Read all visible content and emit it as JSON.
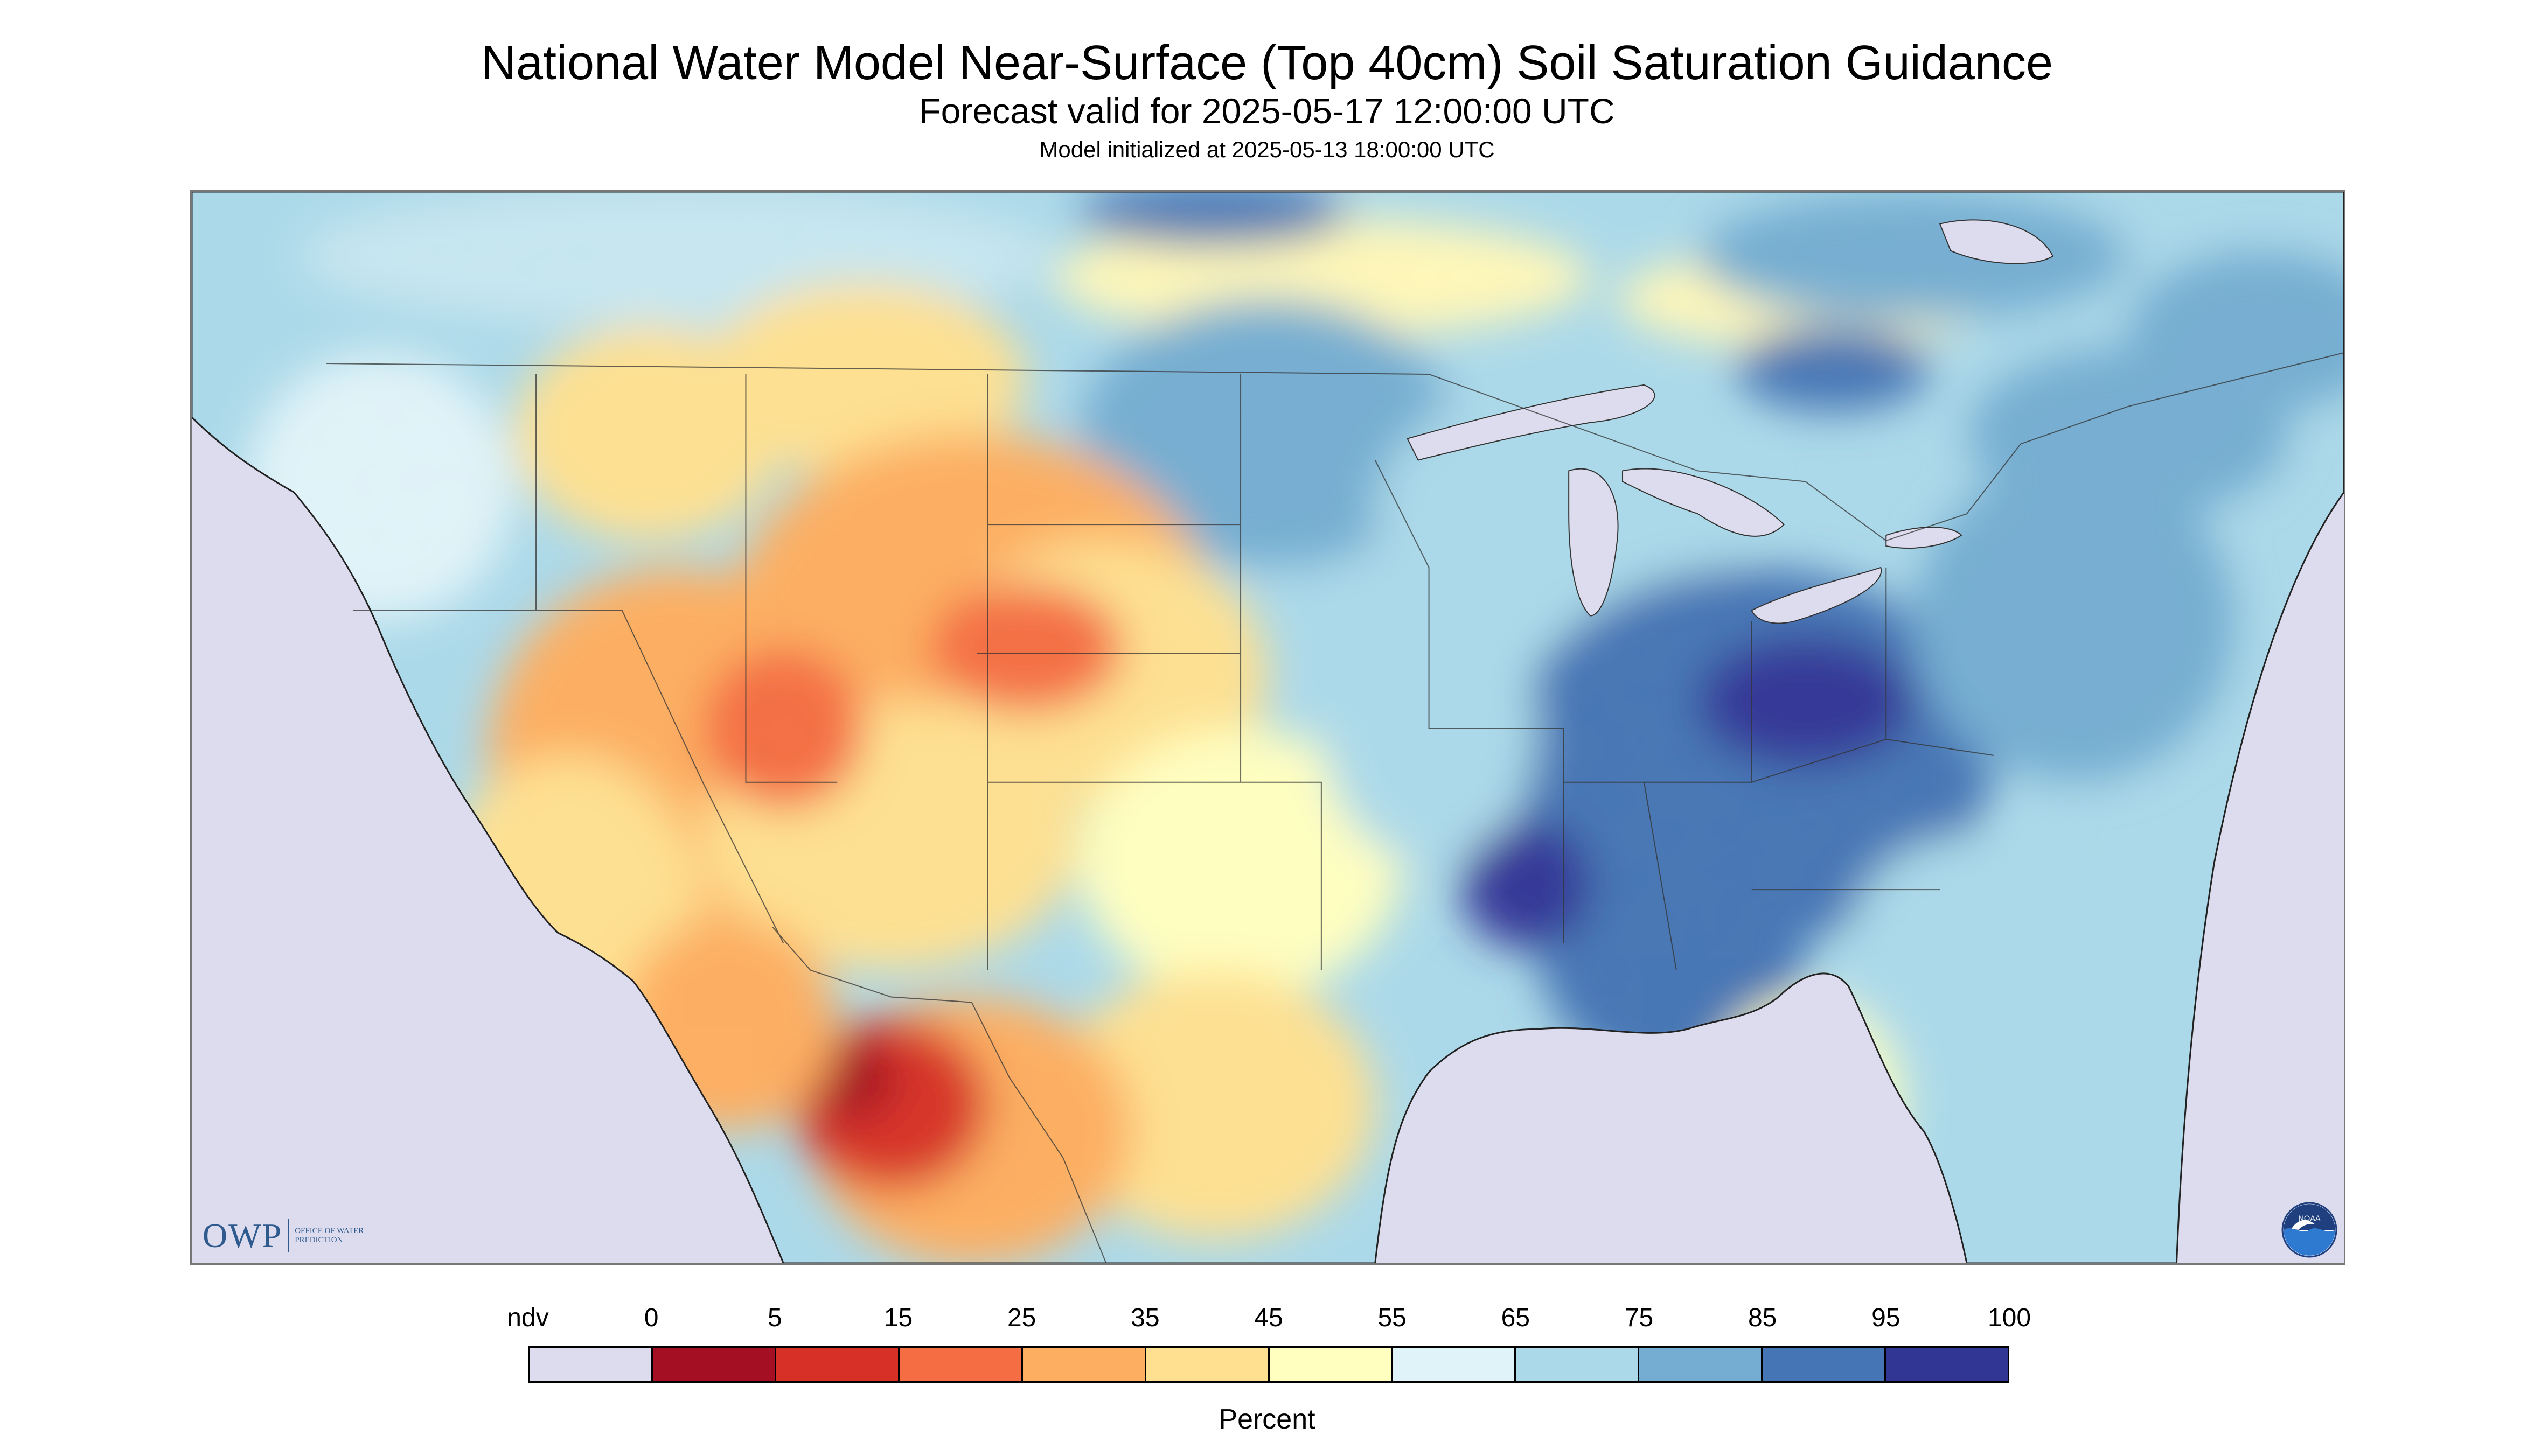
{
  "title": "National Water Model Near-Surface (Top 40cm) Soil Saturation Guidance",
  "subtitle": "Forecast valid for 2025-05-17 12:00:00 UTC",
  "init_line": "Model initialized at 2025-05-13 18:00:00 UTC",
  "logos": {
    "owp_mark": "OWP",
    "owp_text": "OFFICE OF WATER PREDICTION",
    "noaa_text": "NOAA"
  },
  "legend": {
    "unit": "Percent",
    "tick_labels": [
      "ndv",
      "0",
      "5",
      "15",
      "25",
      "35",
      "45",
      "55",
      "65",
      "75",
      "85",
      "95",
      "100"
    ],
    "colors": [
      "#dcdcee",
      "#a50f24",
      "#d73027",
      "#f46d43",
      "#fdae61",
      "#fee090",
      "#ffffbf",
      "#e0f3f8",
      "#abd9e9",
      "#74add1",
      "#4575b4",
      "#313695"
    ]
  },
  "map": {
    "nodata_color": "#dcdcee",
    "ocean_color": "#dcdcee",
    "border_color": "#333333"
  }
}
